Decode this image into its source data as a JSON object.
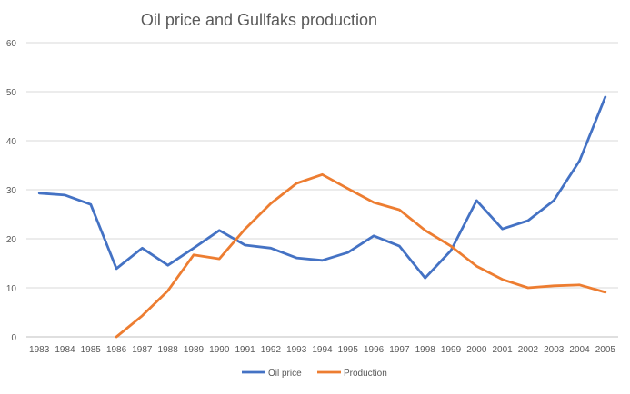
{
  "chart_data": {
    "type": "line",
    "title": "Oil price and Gullfaks production",
    "xlabel": "",
    "ylabel": "",
    "ylim": [
      0,
      60
    ],
    "yticks": [
      0,
      10,
      20,
      30,
      40,
      50,
      60
    ],
    "grid": true,
    "legend_position": "bottom",
    "categories": [
      "1983",
      "1984",
      "1985",
      "1986",
      "1987",
      "1988",
      "1989",
      "1990",
      "1991",
      "1992",
      "1993",
      "1994",
      "1995",
      "1996",
      "1997",
      "1998",
      "1999",
      "2000",
      "2001",
      "2002",
      "2003",
      "2004",
      "2005"
    ],
    "series": [
      {
        "name": "Oil price",
        "color": "#4472C4",
        "values": [
          29.3,
          28.9,
          27.0,
          13.9,
          18.1,
          14.6,
          18.1,
          21.7,
          18.7,
          18.1,
          16.1,
          15.6,
          17.2,
          20.6,
          18.5,
          12.0,
          17.6,
          27.8,
          22.0,
          23.7,
          27.8,
          35.9,
          48.9
        ]
      },
      {
        "name": "Production",
        "color": "#ED7D31",
        "values": [
          null,
          null,
          null,
          0.0,
          4.3,
          9.4,
          16.7,
          15.9,
          22.0,
          27.2,
          31.3,
          33.1,
          30.2,
          27.4,
          25.9,
          21.7,
          18.5,
          14.4,
          11.7,
          10.0,
          10.4,
          10.6,
          9.1
        ]
      }
    ]
  }
}
